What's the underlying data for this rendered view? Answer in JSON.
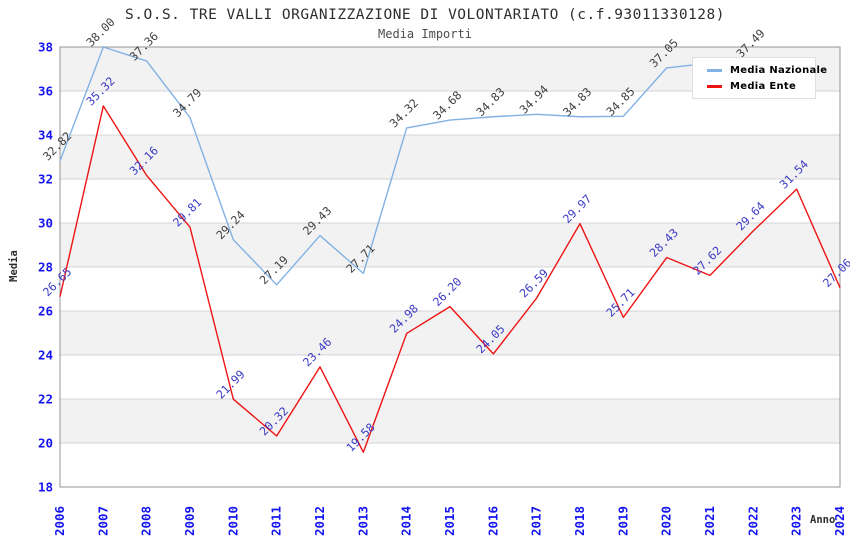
{
  "title": "S.O.S. TRE VALLI ORGANIZZAZIONE DI VOLONTARIATO (c.f.93011330128)",
  "subtitle": "Media Importi",
  "legend": {
    "items": [
      {
        "label": "Media Nazionale",
        "color": "#82b1e3"
      },
      {
        "label": "Media Ente",
        "color": "#ee1414"
      }
    ]
  },
  "chart_data": {
    "type": "line",
    "title": "S.O.S. TRE VALLI ORGANIZZAZIONE DI VOLONTARIATO (c.f.93011330128)",
    "subtitle": "Media Importi",
    "xlabel": "Anno",
    "ylabel": "Media",
    "ylim": [
      18,
      38
    ],
    "ytick_step": 2,
    "grid": "alternating horizontal bands, gray on even bands from top",
    "legend_position": "top-right inside plot",
    "categories": [
      "2006",
      "2007",
      "2008",
      "2009",
      "2010",
      "2011",
      "2012",
      "2013",
      "2014",
      "2015",
      "2016",
      "2017",
      "2018",
      "2019",
      "2020",
      "2021",
      "2022",
      "2023",
      "2024"
    ],
    "series": [
      {
        "name": "Media Nazionale",
        "color": "#82b1e3",
        "label_color": "#404040",
        "values": [
          32.82,
          38.0,
          37.36,
          34.79,
          29.24,
          27.19,
          29.43,
          27.71,
          34.32,
          34.68,
          34.83,
          34.94,
          34.83,
          34.85,
          37.05,
          null,
          37.49,
          null,
          null
        ],
        "note": "2021 label hidden behind legend box; series not visible after 2022"
      },
      {
        "name": "Media Ente",
        "color": "#ee1414",
        "label_color": "#3939c4",
        "values": [
          26.65,
          35.32,
          32.16,
          29.81,
          21.99,
          20.32,
          23.46,
          19.58,
          24.98,
          26.2,
          24.05,
          26.59,
          29.97,
          25.71,
          28.43,
          27.62,
          29.64,
          31.54,
          27.06
        ]
      }
    ],
    "colors": {
      "band_gray": "#f2f2f2",
      "gridline": "#d4d4da",
      "plot_border": "#949494",
      "tick_label": "#1414f0"
    }
  }
}
